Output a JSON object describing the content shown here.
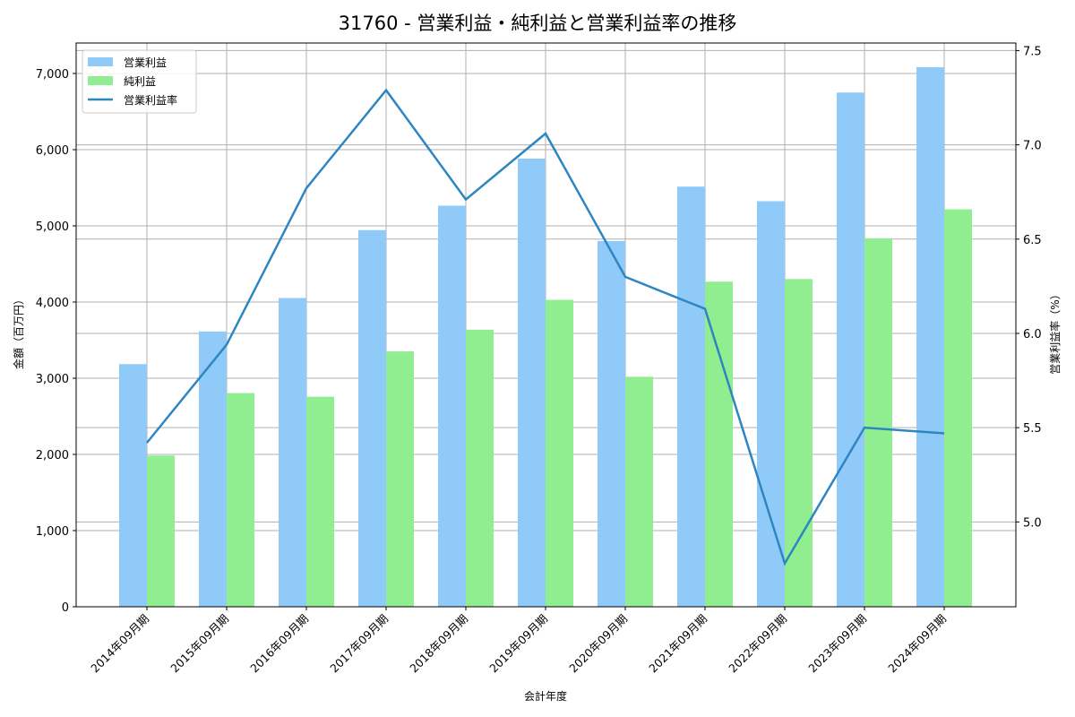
{
  "chart_data": {
    "type": "bar",
    "title": "31760 - 営業利益・純利益と営業利益率の推移",
    "xlabel": "会計年度",
    "ylabel": "金額（百万円）",
    "y2label": "営業利益率（%）",
    "categories": [
      "2014年09月期",
      "2015年09月期",
      "2016年09月期",
      "2017年09月期",
      "2018年09月期",
      "2019年09月期",
      "2020年09月期",
      "2021年09月期",
      "2022年09月期",
      "2023年09月期",
      "2024年09月期"
    ],
    "series": [
      {
        "name": "営業利益",
        "type": "bar",
        "axis": "left",
        "color": "#90caf9",
        "values": [
          3185,
          3613,
          4053,
          4944,
          5265,
          5883,
          4801,
          5515,
          5324,
          6750,
          7083
        ]
      },
      {
        "name": "純利益",
        "type": "bar",
        "axis": "left",
        "color": "#90ee90",
        "values": [
          1985,
          2805,
          2757,
          3352,
          3637,
          4029,
          3019,
          4267,
          4302,
          4837,
          5217
        ]
      },
      {
        "name": "営業利益率",
        "type": "line",
        "axis": "right",
        "color": "#2e86c1",
        "values": [
          5.42,
          5.94,
          6.77,
          7.29,
          6.71,
          7.06,
          6.3,
          6.13,
          4.78,
          5.5,
          5.47
        ]
      }
    ],
    "ylim": [
      0,
      7400
    ],
    "y2lim": [
      4.55,
      7.54
    ],
    "yticks": [
      0,
      1000,
      2000,
      3000,
      4000,
      5000,
      6000,
      7000
    ],
    "ytick_labels": [
      "0",
      "1,000",
      "2,000",
      "3,000",
      "4,000",
      "5,000",
      "6,000",
      "7,000"
    ],
    "y2ticks": [
      5.0,
      5.5,
      6.0,
      6.5,
      7.0,
      7.5
    ],
    "y2tick_labels": [
      "5.0",
      "5.5",
      "6.0",
      "6.5",
      "7.0",
      "7.5"
    ],
    "grid": true,
    "legend_position": "upper left"
  }
}
